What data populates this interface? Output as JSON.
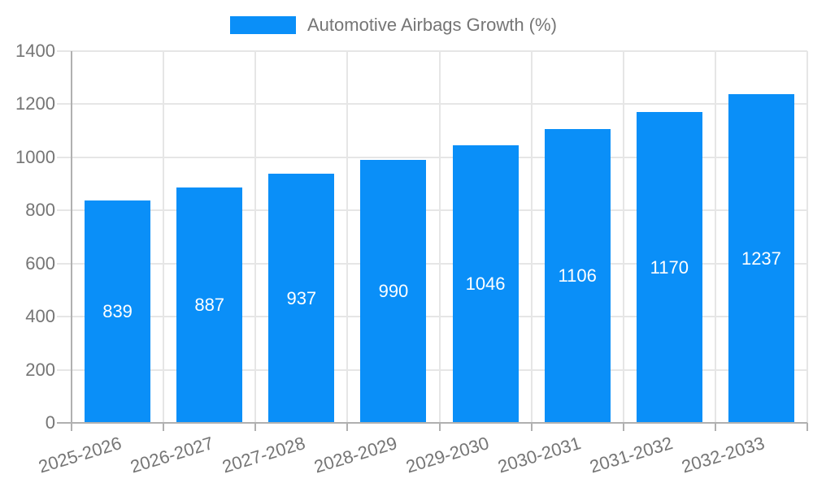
{
  "legend": {
    "label": "Automotive Airbags Growth (%)"
  },
  "colors": {
    "bar": "#0a8ff8",
    "grid": "#e6e6e6",
    "axis": "#b0b0b0",
    "text": "#757575",
    "value_label": "#ffffff",
    "background": "#ffffff"
  },
  "chart_data": {
    "type": "bar",
    "title": "Automotive Airbags Growth (%)",
    "categories": [
      "2025-2026",
      "2026-2027",
      "2027-2028",
      "2028-2029",
      "2029-2030",
      "2030-2031",
      "2031-2032",
      "2032-2033"
    ],
    "values": [
      839,
      887,
      937,
      990,
      1046,
      1106,
      1170,
      1237
    ],
    "series_name": "Automotive Airbags Growth (%)",
    "xlabel": "",
    "ylabel": "",
    "ylim": [
      0,
      1400
    ],
    "yticks": [
      0,
      200,
      400,
      600,
      800,
      1000,
      1200,
      1400
    ],
    "grid": true,
    "legend_position": "top",
    "value_labels_inside_bars": true
  }
}
